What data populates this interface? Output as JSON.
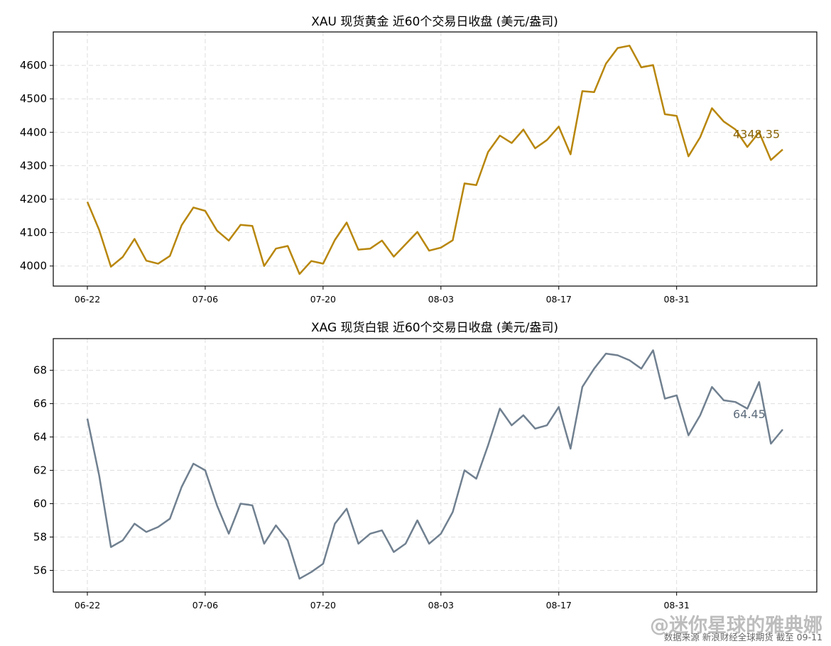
{
  "chart_data": [
    {
      "type": "line",
      "title": "XAU 现货黄金 近60个交易日收盘 (美元/盎司)",
      "x": [
        "06-22",
        "06-23",
        "06-24",
        "06-25",
        "06-26",
        "06-29",
        "06-30",
        "07-01",
        "07-02",
        "07-03",
        "07-06",
        "07-07",
        "07-08",
        "07-09",
        "07-10",
        "07-13",
        "07-14",
        "07-15",
        "07-16",
        "07-17",
        "07-20",
        "07-21",
        "07-22",
        "07-23",
        "07-24",
        "07-27",
        "07-28",
        "07-29",
        "07-30",
        "07-31",
        "08-03",
        "08-04",
        "08-05",
        "08-06",
        "08-07",
        "08-10",
        "08-11",
        "08-12",
        "08-13",
        "08-14",
        "08-17",
        "08-18",
        "08-19",
        "08-20",
        "08-21",
        "08-24",
        "08-25",
        "08-26",
        "08-27",
        "08-28",
        "08-31",
        "09-01",
        "09-02",
        "09-03",
        "09-04",
        "09-07",
        "09-08",
        "09-09",
        "09-10",
        "09-11"
      ],
      "x_ticks": [
        "06-22",
        "07-06",
        "07-20",
        "08-03",
        "08-17",
        "08-31"
      ],
      "series": [
        {
          "color": "#b8860b",
          "values": [
            4192,
            4108,
            3998,
            4027,
            4081,
            4016,
            4007,
            4030,
            4122,
            4175,
            4165,
            4106,
            4076,
            4123,
            4120,
            4000,
            4052,
            4060,
            3976,
            4015,
            4007,
            4078,
            4130,
            4049,
            4052,
            4076,
            4028,
            4065,
            4102,
            4046,
            4055,
            4077,
            4247,
            4242,
            4341,
            4390,
            4368,
            4408,
            4352,
            4377,
            4417,
            4334,
            4523,
            4520,
            4605,
            4652,
            4659,
            4594,
            4601,
            4454,
            4449,
            4328,
            4385,
            4472,
            4432,
            4408,
            4356,
            4400,
            4317,
            4348.35
          ]
        }
      ],
      "ylim": [
        3940,
        4700
      ],
      "y_ticks": [
        4000,
        4100,
        4200,
        4300,
        4400,
        4500,
        4600
      ],
      "last_label": "4348.35",
      "last_label_color": "#8b6508",
      "grid": true
    },
    {
      "type": "line",
      "title": "XAG 现货白银 近60个交易日收盘 (美元/盎司)",
      "x": [
        "06-22",
        "06-23",
        "06-24",
        "06-25",
        "06-26",
        "06-29",
        "06-30",
        "07-01",
        "07-02",
        "07-03",
        "07-06",
        "07-07",
        "07-08",
        "07-09",
        "07-10",
        "07-13",
        "07-14",
        "07-15",
        "07-16",
        "07-17",
        "07-20",
        "07-21",
        "07-22",
        "07-23",
        "07-24",
        "07-27",
        "07-28",
        "07-29",
        "07-30",
        "07-31",
        "08-03",
        "08-04",
        "08-05",
        "08-06",
        "08-07",
        "08-10",
        "08-11",
        "08-12",
        "08-13",
        "08-14",
        "08-17",
        "08-18",
        "08-19",
        "08-20",
        "08-21",
        "08-24",
        "08-25",
        "08-26",
        "08-27",
        "08-28",
        "08-31",
        "09-01",
        "09-02",
        "09-03",
        "09-04",
        "09-07",
        "09-08",
        "09-09",
        "09-10",
        "09-11"
      ],
      "x_ticks": [
        "06-22",
        "07-06",
        "07-20",
        "08-03",
        "08-17",
        "08-31"
      ],
      "series": [
        {
          "color": "#708090",
          "values": [
            65.1,
            61.7,
            57.4,
            57.8,
            58.8,
            58.3,
            58.6,
            59.1,
            61.0,
            62.4,
            62.0,
            59.9,
            58.2,
            60.0,
            59.9,
            57.6,
            58.7,
            57.8,
            55.5,
            55.9,
            56.4,
            58.8,
            59.7,
            57.6,
            58.2,
            58.4,
            57.1,
            57.6,
            59.0,
            57.6,
            58.2,
            59.5,
            62.0,
            61.5,
            63.5,
            65.7,
            64.7,
            65.3,
            64.5,
            64.7,
            65.8,
            63.3,
            67.0,
            68.1,
            69.0,
            68.9,
            68.6,
            68.1,
            69.2,
            66.3,
            66.5,
            64.1,
            65.3,
            67.0,
            66.2,
            66.1,
            65.7,
            67.3,
            63.6,
            64.45
          ]
        }
      ],
      "ylim": [
        54.7,
        69.9
      ],
      "y_ticks": [
        56,
        58,
        60,
        62,
        64,
        66,
        68
      ],
      "last_label": "64.45",
      "last_label_color": "#5c6b7a",
      "grid": true
    }
  ],
  "footer": "数据来源 新浪财经全球期货 截至 09-11",
  "watermark": "@迷你星球的雅典娜"
}
